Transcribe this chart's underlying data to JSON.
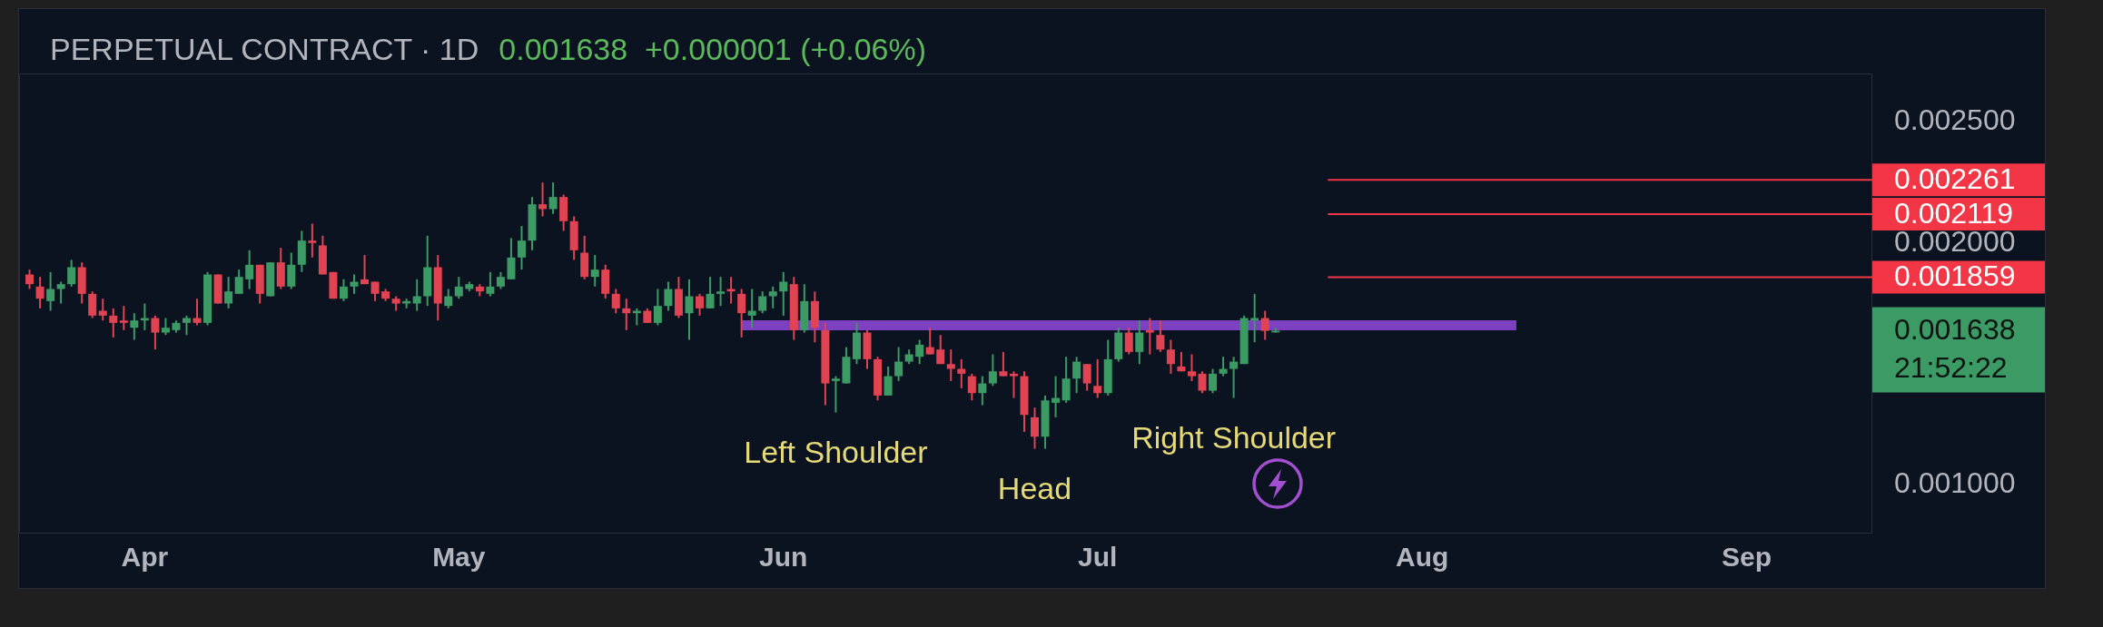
{
  "chart_data": {
    "type": "candlestick",
    "title": "PERPETUAL CONTRACT · 1D",
    "subtitle": "0.001638  +0.000001 (+0.06%)",
    "x": [
      "--03-21",
      "--03-22",
      "--03-23",
      "--03-24",
      "--03-25",
      "--03-26",
      "--03-27",
      "--03-28",
      "--03-29",
      "--03-30",
      "--03-31",
      "--04-01",
      "--04-02",
      "--04-03",
      "--04-04",
      "--04-05",
      "--04-06",
      "--04-07",
      "--04-08",
      "--04-09",
      "--04-10",
      "--04-11",
      "--04-12",
      "--04-13",
      "--04-14",
      "--04-15",
      "--04-16",
      "--04-17",
      "--04-18",
      "--04-19",
      "--04-20",
      "--04-21",
      "--04-22",
      "--04-23",
      "--04-24",
      "--04-25",
      "--04-26",
      "--04-27",
      "--04-28",
      "--04-29",
      "--04-30",
      "--05-01",
      "--05-02",
      "--05-03",
      "--05-04",
      "--05-05",
      "--05-06",
      "--05-07",
      "--05-08",
      "--05-09",
      "--05-10",
      "--05-11",
      "--05-12",
      "--05-13",
      "--05-14",
      "--05-15",
      "--05-16",
      "--05-17",
      "--05-18",
      "--05-19",
      "--05-20",
      "--05-21",
      "--05-22",
      "--05-23",
      "--05-24",
      "--05-25",
      "--05-26",
      "--05-27",
      "--05-28",
      "--05-29",
      "--05-30",
      "--05-31",
      "--06-01",
      "--06-02",
      "--06-03",
      "--06-04",
      "--06-05",
      "--06-06",
      "--06-07",
      "--06-08",
      "--06-09",
      "--06-10",
      "--06-11",
      "--06-12",
      "--06-13",
      "--06-14",
      "--06-15",
      "--06-16",
      "--06-17",
      "--06-18",
      "--06-19",
      "--06-20",
      "--06-21",
      "--06-22",
      "--06-23",
      "--06-24",
      "--06-25",
      "--06-26",
      "--06-27",
      "--06-28",
      "--06-29",
      "--06-30",
      "--07-01",
      "--07-02",
      "--07-03",
      "--07-04",
      "--07-05",
      "--07-06",
      "--07-07",
      "--07-08",
      "--07-09",
      "--07-10",
      "--07-11",
      "--07-12",
      "--07-13",
      "--07-14",
      "--07-15",
      "--07-16",
      "--07-17",
      "--07-18"
    ],
    "ohlc": [
      [
        0.00187,
        0.00189,
        0.00181,
        0.00183
      ],
      [
        0.00182,
        0.00186,
        0.00173,
        0.00177
      ],
      [
        0.00176,
        0.00188,
        0.00172,
        0.00181
      ],
      [
        0.00181,
        0.00184,
        0.00175,
        0.00183
      ],
      [
        0.00183,
        0.00193,
        0.00182,
        0.0019
      ],
      [
        0.0019,
        0.00192,
        0.00175,
        0.00179
      ],
      [
        0.00179,
        0.0018,
        0.00169,
        0.0017
      ],
      [
        0.00172,
        0.00177,
        0.00168,
        0.0017
      ],
      [
        0.0017,
        0.00173,
        0.00161,
        0.00167
      ],
      [
        0.00168,
        0.00174,
        0.00164,
        0.00167
      ],
      [
        0.00165,
        0.00171,
        0.0016,
        0.00168
      ],
      [
        0.00168,
        0.00175,
        0.00164,
        0.00169
      ],
      [
        0.00169,
        0.0017,
        0.00156,
        0.00163
      ],
      [
        0.00163,
        0.00169,
        0.00162,
        0.00165
      ],
      [
        0.00164,
        0.00168,
        0.00163,
        0.00167
      ],
      [
        0.00167,
        0.0017,
        0.00162,
        0.00169
      ],
      [
        0.00169,
        0.00177,
        0.00166,
        0.00167
      ],
      [
        0.00167,
        0.00188,
        0.00166,
        0.00187
      ],
      [
        0.00187,
        0.00187,
        0.00175,
        0.00175
      ],
      [
        0.00175,
        0.00186,
        0.00173,
        0.0018
      ],
      [
        0.00179,
        0.00189,
        0.00179,
        0.00186
      ],
      [
        0.00185,
        0.00197,
        0.00181,
        0.00191
      ],
      [
        0.00191,
        0.00191,
        0.00175,
        0.00179
      ],
      [
        0.00178,
        0.00192,
        0.00178,
        0.00192
      ],
      [
        0.00192,
        0.00198,
        0.00181,
        0.00182
      ],
      [
        0.00182,
        0.00196,
        0.00181,
        0.00191
      ],
      [
        0.00191,
        0.00205,
        0.00188,
        0.00201
      ],
      [
        0.00201,
        0.00208,
        0.00194,
        0.002
      ],
      [
        0.00199,
        0.00203,
        0.00187,
        0.00187
      ],
      [
        0.00188,
        0.00188,
        0.00177,
        0.00177
      ],
      [
        0.00177,
        0.00185,
        0.00176,
        0.00182
      ],
      [
        0.00182,
        0.00187,
        0.00179,
        0.00184
      ],
      [
        0.00185,
        0.00195,
        0.00183,
        0.00183
      ],
      [
        0.00184,
        0.00184,
        0.00176,
        0.00179
      ],
      [
        0.0018,
        0.00181,
        0.00176,
        0.00177
      ],
      [
        0.00177,
        0.00178,
        0.00172,
        0.00175
      ],
      [
        0.00175,
        0.00177,
        0.00173,
        0.00176
      ],
      [
        0.00175,
        0.00185,
        0.00172,
        0.00178
      ],
      [
        0.00178,
        0.00203,
        0.00174,
        0.0019
      ],
      [
        0.0019,
        0.00195,
        0.00168,
        0.00175
      ],
      [
        0.00174,
        0.00181,
        0.00173,
        0.00178
      ],
      [
        0.00178,
        0.00186,
        0.00177,
        0.00182
      ],
      [
        0.00181,
        0.00184,
        0.0018,
        0.00183
      ],
      [
        0.00182,
        0.00183,
        0.00178,
        0.0018
      ],
      [
        0.00179,
        0.00188,
        0.00178,
        0.00182
      ],
      [
        0.00182,
        0.00188,
        0.00181,
        0.00186
      ],
      [
        0.00185,
        0.00202,
        0.00185,
        0.00194
      ],
      [
        0.00194,
        0.00207,
        0.00189,
        0.00201
      ],
      [
        0.00201,
        0.00219,
        0.00197,
        0.00216
      ],
      [
        0.00216,
        0.00225,
        0.00211,
        0.00214
      ],
      [
        0.00214,
        0.00225,
        0.00212,
        0.00219
      ],
      [
        0.00219,
        0.0022,
        0.00205,
        0.00209
      ],
      [
        0.00209,
        0.00211,
        0.00193,
        0.00197
      ],
      [
        0.00196,
        0.00203,
        0.00185,
        0.00186
      ],
      [
        0.00186,
        0.00195,
        0.00182,
        0.00189
      ],
      [
        0.00189,
        0.00191,
        0.00177,
        0.00179
      ],
      [
        0.00179,
        0.00181,
        0.00171,
        0.00173
      ],
      [
        0.00173,
        0.00177,
        0.00164,
        0.00171
      ],
      [
        0.00171,
        0.00173,
        0.00166,
        0.00172
      ],
      [
        0.00172,
        0.00173,
        0.00167,
        0.00167
      ],
      [
        0.00167,
        0.00181,
        0.00166,
        0.00174
      ],
      [
        0.00174,
        0.00184,
        0.00172,
        0.00181
      ],
      [
        0.00181,
        0.00186,
        0.00169,
        0.0017
      ],
      [
        0.00171,
        0.00185,
        0.0016,
        0.00178
      ],
      [
        0.00178,
        0.00179,
        0.0017,
        0.00173
      ],
      [
        0.00173,
        0.00186,
        0.00173,
        0.00179
      ],
      [
        0.00179,
        0.00186,
        0.00174,
        0.0018
      ],
      [
        0.00181,
        0.00186,
        0.00175,
        0.0018
      ],
      [
        0.00179,
        0.00181,
        0.00161,
        0.00171
      ],
      [
        0.0017,
        0.00181,
        0.00165,
        0.00172
      ],
      [
        0.00172,
        0.0018,
        0.00171,
        0.00178
      ],
      [
        0.00178,
        0.00182,
        0.00173,
        0.0018
      ],
      [
        0.0018,
        0.00188,
        0.0017,
        0.00184
      ],
      [
        0.00183,
        0.00186,
        0.0016,
        0.00164
      ],
      [
        0.00164,
        0.00183,
        0.00163,
        0.00176
      ],
      [
        0.00176,
        0.0018,
        0.00159,
        0.00165
      ],
      [
        0.00164,
        0.00167,
        0.00133,
        0.00142
      ],
      [
        0.00143,
        0.00145,
        0.0013,
        0.00144
      ],
      [
        0.00142,
        0.00157,
        0.00142,
        0.00153
      ],
      [
        0.00152,
        0.00167,
        0.0015,
        0.00163
      ],
      [
        0.00163,
        0.00164,
        0.00148,
        0.00152
      ],
      [
        0.00152,
        0.00153,
        0.00135,
        0.00137
      ],
      [
        0.00137,
        0.00149,
        0.00137,
        0.00145
      ],
      [
        0.00145,
        0.00157,
        0.00143,
        0.00151
      ],
      [
        0.00151,
        0.00156,
        0.0015,
        0.00154
      ],
      [
        0.00153,
        0.0016,
        0.0015,
        0.00158
      ],
      [
        0.00157,
        0.00165,
        0.00154,
        0.00154
      ],
      [
        0.00156,
        0.00162,
        0.0015,
        0.0015
      ],
      [
        0.0015,
        0.00156,
        0.00143,
        0.00148
      ],
      [
        0.00148,
        0.00152,
        0.0014,
        0.00146
      ],
      [
        0.00145,
        0.00146,
        0.00135,
        0.00138
      ],
      [
        0.00138,
        0.00145,
        0.00133,
        0.00142
      ],
      [
        0.00142,
        0.00154,
        0.00141,
        0.00147
      ],
      [
        0.00147,
        0.00155,
        0.00145,
        0.00145
      ],
      [
        0.00146,
        0.00147,
        0.00136,
        0.00145
      ],
      [
        0.00145,
        0.00147,
        0.00122,
        0.00129
      ],
      [
        0.00128,
        0.00132,
        0.00115,
        0.0012
      ],
      [
        0.0012,
        0.00137,
        0.00115,
        0.00135
      ],
      [
        0.00134,
        0.00145,
        0.00128,
        0.00136
      ],
      [
        0.00135,
        0.00153,
        0.00134,
        0.00144
      ],
      [
        0.00144,
        0.00153,
        0.00138,
        0.00151
      ],
      [
        0.0015,
        0.0015,
        0.00139,
        0.00142
      ],
      [
        0.00141,
        0.00152,
        0.00136,
        0.00138
      ],
      [
        0.00138,
        0.0016,
        0.00137,
        0.00152
      ],
      [
        0.00152,
        0.00165,
        0.00151,
        0.00163
      ],
      [
        0.00163,
        0.00165,
        0.00154,
        0.00155
      ],
      [
        0.00155,
        0.00168,
        0.0015,
        0.00163
      ],
      [
        0.00164,
        0.00169,
        0.00154,
        0.00163
      ],
      [
        0.00162,
        0.00168,
        0.00155,
        0.00156
      ],
      [
        0.00156,
        0.0016,
        0.00146,
        0.0015
      ],
      [
        0.00149,
        0.00155,
        0.00147,
        0.00147
      ],
      [
        0.00147,
        0.00154,
        0.00143,
        0.00145
      ],
      [
        0.00146,
        0.00147,
        0.00138,
        0.00139
      ],
      [
        0.00139,
        0.00148,
        0.00138,
        0.00146
      ],
      [
        0.00146,
        0.00153,
        0.00145,
        0.00148
      ],
      [
        0.00148,
        0.00153,
        0.00136,
        0.00151
      ],
      [
        0.0015,
        0.0017,
        0.0015,
        0.00169
      ],
      [
        0.00168,
        0.00179,
        0.00159,
        0.00169
      ],
      [
        0.00169,
        0.00172,
        0.0016,
        0.001637
      ],
      [
        0.001637,
        0.00165,
        0.00163,
        0.001638
      ]
    ],
    "colors": [
      "#e04352",
      "#e04352",
      "#3c9a64",
      "#3c9a64",
      "#3c9a64",
      "#e04352",
      "#e04352",
      "#e04352",
      "#e04352",
      "#e04352",
      "#3c9a64",
      "#3c9a64",
      "#e04352",
      "#3c9a64",
      "#3c9a64",
      "#3c9a64",
      "#e04352",
      "#3c9a64",
      "#e04352",
      "#3c9a64",
      "#3c9a64",
      "#3c9a64",
      "#e04352",
      "#3c9a64",
      "#e04352",
      "#3c9a64",
      "#3c9a64",
      "#e04352",
      "#e04352",
      "#e04352",
      "#3c9a64",
      "#3c9a64",
      "#e04352",
      "#e04352",
      "#e04352",
      "#e04352",
      "#3c9a64",
      "#3c9a64",
      "#3c9a64",
      "#e04352",
      "#3c9a64",
      "#3c9a64",
      "#3c9a64",
      "#e04352",
      "#3c9a64",
      "#3c9a64",
      "#3c9a64",
      "#3c9a64",
      "#3c9a64",
      "#e04352",
      "#3c9a64",
      "#e04352",
      "#e04352",
      "#e04352",
      "#3c9a64",
      "#e04352",
      "#e04352",
      "#e04352",
      "#3c9a64",
      "#e04352",
      "#3c9a64",
      "#3c9a64",
      "#e04352",
      "#3c9a64",
      "#e04352",
      "#3c9a64",
      "#3c9a64",
      "#e04352",
      "#e04352",
      "#3c9a64",
      "#3c9a64",
      "#3c9a64",
      "#3c9a64",
      "#e04352",
      "#3c9a64",
      "#e04352",
      "#e04352",
      "#3c9a64",
      "#3c9a64",
      "#3c9a64",
      "#e04352",
      "#e04352",
      "#3c9a64",
      "#3c9a64",
      "#3c9a64",
      "#3c9a64",
      "#e04352",
      "#e04352",
      "#e04352",
      "#e04352",
      "#e04352",
      "#3c9a64",
      "#3c9a64",
      "#e04352",
      "#e04352",
      "#e04352",
      "#e04352",
      "#3c9a64",
      "#3c9a64",
      "#3c9a64",
      "#3c9a64",
      "#e04352",
      "#e04352",
      "#3c9a64",
      "#3c9a64",
      "#e04352",
      "#3c9a64",
      "#e04352",
      "#e04352",
      "#e04352",
      "#e04352",
      "#e04352",
      "#e04352",
      "#3c9a64",
      "#3c9a64",
      "#3c9a64",
      "#3c9a64",
      "#3c9a64",
      "#e04352",
      "#3c9a64"
    ],
    "series": [
      {
        "type": "line",
        "x": [
          "--05-28",
          "--08-10"
        ],
        "values": [
          0.00166,
          0.00166
        ],
        "color": "#7d40c0"
      },
      {
        "type": "line",
        "x": [
          "--07-23",
          "--09-13"
        ],
        "values": [
          0.002261,
          0.002261
        ],
        "color": "#f23645",
        "value_labels": [
          null,
          "0.002261"
        ]
      },
      {
        "type": "line",
        "x": [
          "--07-23",
          "--09-13"
        ],
        "values": [
          0.002119,
          0.002119
        ],
        "color": "#f23645",
        "value_labels": [
          null,
          "0.002119"
        ]
      },
      {
        "type": "line",
        "x": [
          "--07-23",
          "--09-13"
        ],
        "values": [
          0.001859,
          0.001859
        ],
        "color": "#f23645",
        "value_labels": [
          null,
          "0.001859"
        ]
      }
    ],
    "xlim": [
      "--03-20",
      "--09-13"
    ],
    "xticks": [
      {
        "value": "--04-01",
        "label": "Apr"
      },
      {
        "value": "--05-01",
        "label": "May"
      },
      {
        "value": "--06-01",
        "label": "Jun"
      },
      {
        "value": "--07-01",
        "label": "Jul"
      },
      {
        "value": "--08-01",
        "label": "Aug"
      },
      {
        "value": "--09-01",
        "label": "Sep"
      }
    ],
    "ylim": [
      0.0008,
      0.0027
    ],
    "yticks": [
      {
        "value": 0.001,
        "label": "0.001000"
      },
      {
        "value": 0.002,
        "label": "0.002000"
      },
      {
        "value": 0.0025,
        "label": "0.002500"
      }
    ],
    "annotations": [
      {
        "text": "Left Shoulder",
        "x": "--06-06",
        "y": 0.0013
      },
      {
        "text": "Head",
        "x": "--06-25",
        "y": 0.00115
      },
      {
        "text": "Right Shoulder",
        "x": "--07-14",
        "y": 0.00136
      },
      "0.001638",
      "21:52:22"
    ]
  }
}
